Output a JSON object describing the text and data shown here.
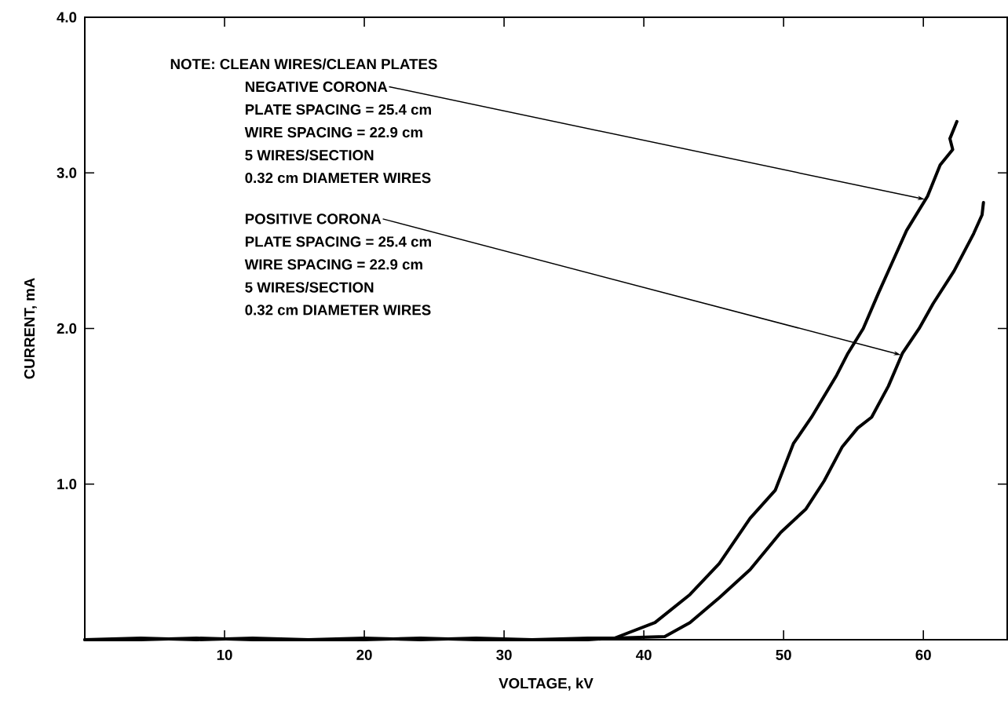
{
  "chart_data": {
    "type": "line",
    "xlabel": "VOLTAGE, kV",
    "ylabel": "CURRENT, mA",
    "xlim": [
      0,
      66
    ],
    "ylim": [
      0,
      4
    ],
    "xticks": [
      10,
      20,
      30,
      40,
      50,
      60
    ],
    "yticks": [
      {
        "value": 1,
        "label": "1.0"
      },
      {
        "value": 2,
        "label": "2.0"
      },
      {
        "value": 3,
        "label": "3.0"
      },
      {
        "value": 4,
        "label": "4.0"
      }
    ],
    "grid": false,
    "marker": "none",
    "line_style": "solid",
    "series": [
      {
        "color": "#000000",
        "x": [
          0,
          4,
          8,
          12,
          16,
          20,
          24,
          28,
          32,
          36,
          37.9,
          40.8,
          43.3,
          45.4,
          47.6,
          49.4,
          50.7,
          52.0,
          53.8,
          54.6,
          55.7,
          56.8,
          57.7,
          58.8,
          60.3,
          61.2,
          62.1,
          61.9,
          62.4
        ],
        "values": [
          0.0,
          0.01,
          0.0,
          0.01,
          0.0,
          0.01,
          0.0,
          0.01,
          0.0,
          0.01,
          0.01,
          0.11,
          0.29,
          0.49,
          0.78,
          0.96,
          1.26,
          1.43,
          1.7,
          1.84,
          2.0,
          2.23,
          2.41,
          2.63,
          2.85,
          3.05,
          3.15,
          3.22,
          3.33
        ]
      },
      {
        "color": "#000000",
        "x": [
          0,
          4,
          8,
          12,
          16,
          20,
          24,
          28,
          32,
          36,
          37.9,
          41.5,
          43.3,
          45.4,
          47.6,
          49.8,
          51.6,
          52.9,
          54.2,
          55.3,
          56.3,
          57.5,
          58.5,
          59.7,
          60.7,
          62.2,
          63.6,
          64.2,
          64.3
        ],
        "values": [
          0.0,
          0.0,
          0.01,
          0.0,
          0.0,
          0.0,
          0.01,
          0.0,
          0.0,
          0.0,
          0.01,
          0.02,
          0.11,
          0.27,
          0.45,
          0.69,
          0.84,
          1.02,
          1.24,
          1.36,
          1.43,
          1.63,
          1.84,
          2.0,
          2.16,
          2.37,
          2.61,
          2.73,
          2.81
        ]
      }
    ],
    "annotations": [
      "NOTE:  CLEAN WIRES/CLEAN PLATES",
      {
        "text": "NEGATIVE CORONA",
        "x": 60.1,
        "y": 2.83
      },
      "PLATE SPACING = 25.4 cm",
      "WIRE SPACING = 22.9 cm",
      "5 WIRES/SECTION",
      "0.32 cm DIAMETER WIRES",
      {
        "text": "POSITIVE CORONA",
        "x": 58.4,
        "y": 1.83
      },
      "PLATE SPACING = 25.4 cm",
      "WIRE SPACING = 22.9 cm",
      "5 WIRES/SECTION",
      "0.32 cm DIAMETER WIRES"
    ]
  }
}
